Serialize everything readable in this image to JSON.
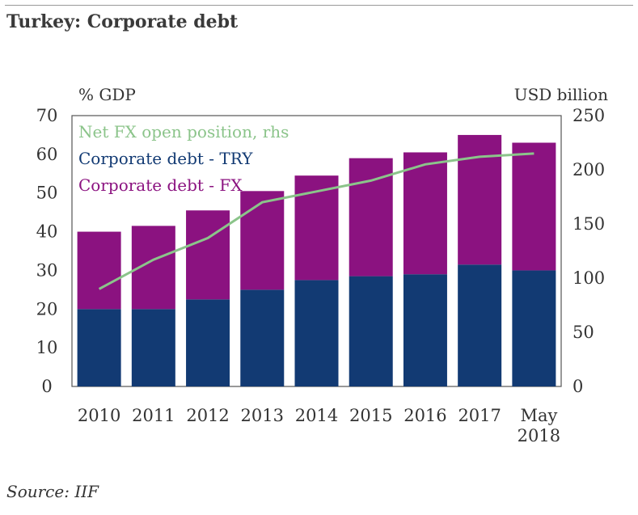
{
  "title": "Turkey: Corporate debt",
  "source": "Source: IIF",
  "chart_data": {
    "type": "bar",
    "stacked": true,
    "categories": [
      "2010",
      "2011",
      "2012",
      "2013",
      "2014",
      "2015",
      "2016",
      "2017",
      "May 2018"
    ],
    "left_axis": {
      "unit": "% GDP",
      "ylim": [
        0,
        70
      ],
      "ticks": [
        "0",
        "10",
        "20",
        "30",
        "40",
        "50",
        "60",
        "70"
      ]
    },
    "right_axis": {
      "unit": "USD billion",
      "ylim": [
        0,
        250
      ],
      "ticks": [
        "0",
        "50",
        "100",
        "150",
        "200",
        "250"
      ]
    },
    "series": [
      {
        "name": "Corporate debt - TRY",
        "type": "bar",
        "axis": "left",
        "color": "#123a73",
        "values": [
          20,
          20,
          22.5,
          25,
          27.5,
          28.5,
          29,
          31.5,
          30
        ]
      },
      {
        "name": "Corporate debt - FX",
        "type": "bar",
        "axis": "left",
        "color": "#8b1280",
        "values": [
          20,
          21.5,
          23,
          25.5,
          27,
          30.5,
          31.5,
          33.5,
          33
        ]
      },
      {
        "name": "Net FX open position, rhs",
        "type": "line",
        "axis": "right",
        "color": "#8bc48a",
        "values": [
          90,
          117,
          137,
          170,
          180,
          190,
          205,
          212,
          215
        ]
      }
    ],
    "legend_position": "top-left",
    "grid": false
  }
}
